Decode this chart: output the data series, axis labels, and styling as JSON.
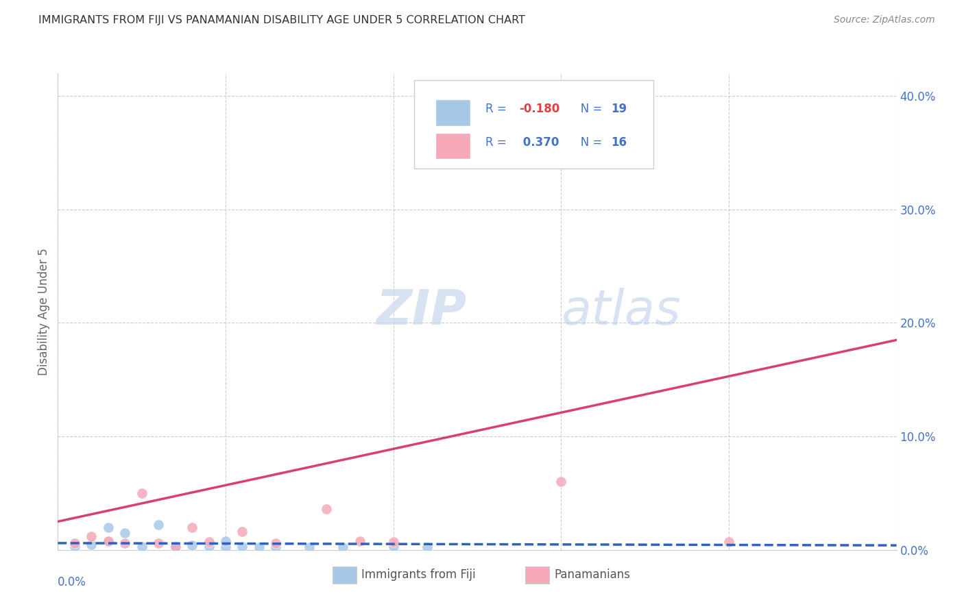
{
  "title": "IMMIGRANTS FROM FIJI VS PANAMANIAN DISABILITY AGE UNDER 5 CORRELATION CHART",
  "source": "Source: ZipAtlas.com",
  "ylabel": "Disability Age Under 5",
  "legend_label1": "Immigrants from Fiji",
  "legend_label2": "Panamanians",
  "fiji_R": "-0.180",
  "fiji_N": "19",
  "pan_R": "0.370",
  "pan_N": "16",
  "fiji_color": "#a8c8e8",
  "pan_color": "#f4a8b8",
  "fiji_line_color": "#3060c0",
  "pan_line_color": "#d84070",
  "fiji_points_x": [
    0.001,
    0.002,
    0.003,
    0.003,
    0.004,
    0.005,
    0.006,
    0.007,
    0.008,
    0.009,
    0.01,
    0.01,
    0.011,
    0.012,
    0.013,
    0.015,
    0.017,
    0.02,
    0.022
  ],
  "fiji_points_y": [
    0.003,
    0.005,
    0.008,
    0.02,
    0.015,
    0.003,
    0.022,
    0.003,
    0.004,
    0.003,
    0.002,
    0.008,
    0.003,
    0.002,
    0.002,
    0.002,
    0.002,
    0.003,
    0.002
  ],
  "pan_points_x": [
    0.001,
    0.002,
    0.003,
    0.004,
    0.005,
    0.006,
    0.007,
    0.008,
    0.009,
    0.011,
    0.013,
    0.016,
    0.018,
    0.02,
    0.03,
    0.04
  ],
  "pan_points_y": [
    0.006,
    0.012,
    0.008,
    0.006,
    0.05,
    0.006,
    0.003,
    0.02,
    0.007,
    0.016,
    0.006,
    0.036,
    0.008,
    0.007,
    0.06,
    0.007
  ],
  "pan_line_x0": 0.0,
  "pan_line_y0": 0.025,
  "pan_line_x1": 0.05,
  "pan_line_y1": 0.185,
  "fiji_line_x0": 0.0,
  "fiji_line_y0": 0.006,
  "fiji_line_x1": 0.05,
  "fiji_line_y1": 0.004,
  "xmin": 0.0,
  "xmax": 0.05,
  "ymin": 0.0,
  "ymax": 0.42,
  "yticks": [
    0.0,
    0.1,
    0.2,
    0.3,
    0.4
  ],
  "background_color": "#ffffff",
  "grid_color": "#cccccc",
  "watermark_zip": "ZIP",
  "watermark_atlas": "atlas",
  "title_color": "#333333",
  "blue_color": "#4472c4",
  "legend_neg_color": "#ff0000",
  "legend_pos_color": "#4472c4"
}
